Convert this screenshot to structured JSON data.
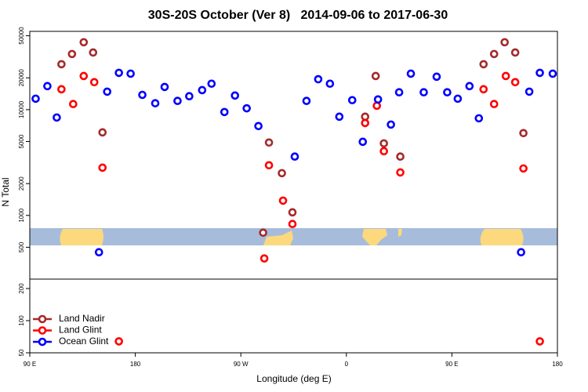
{
  "chart_data": [
    {
      "type": "scatter",
      "title": "30S-20S October (Ver 8)   2014-09-06 to 2017-06-30",
      "ylabel": "N Total",
      "xlim": [
        90,
        540
      ],
      "ylim": [
        250,
        55000
      ],
      "log_y": true,
      "yticks": [
        500,
        1000,
        2000,
        5000,
        10000,
        20000,
        50000
      ],
      "series": [
        {
          "name": "Land Nadir",
          "color": "#a52a2a",
          "x": [
            117,
            126,
            136,
            144,
            152,
            289,
            294,
            305,
            314,
            376,
            385,
            392,
            406,
            477,
            486,
            495,
            504,
            511
          ],
          "values": [
            26900,
            33600,
            43400,
            34700,
            6100,
            687,
            4890,
            2510,
            1070,
            8580,
            20800,
            4800,
            3600,
            26900,
            33600,
            43400,
            34700,
            6000
          ]
        },
        {
          "name": "Land Glint",
          "color": "#ff0000",
          "x": [
            117,
            127,
            136,
            145,
            152,
            290,
            294,
            306,
            314,
            376,
            386,
            392,
            406,
            477,
            486,
            496,
            504,
            511
          ],
          "values": [
            15600,
            11300,
            20800,
            18200,
            2830,
            392,
            2980,
            1380,
            830,
            7480,
            10900,
            4050,
            2550,
            15600,
            11300,
            20800,
            18200,
            2780
          ]
        },
        {
          "name": "Ocean Glint",
          "color": "#0000ff",
          "x": [
            95,
            105,
            113,
            149,
            156,
            166,
            176,
            186,
            197,
            205,
            216,
            226,
            237,
            245,
            256,
            265,
            275,
            285,
            316,
            326,
            336,
            346,
            354,
            365,
            374,
            387,
            398,
            405,
            415,
            426,
            437,
            446,
            455,
            465,
            473,
            509,
            516,
            525,
            536
          ],
          "values": [
            12700,
            16700,
            8430,
            449,
            14800,
            22300,
            21900,
            13800,
            11500,
            16400,
            12100,
            13400,
            15300,
            17600,
            9500,
            13600,
            10300,
            7000,
            3600,
            12100,
            19400,
            17600,
            8580,
            12300,
            4970,
            12500,
            7230,
            14600,
            21900,
            14600,
            20500,
            14600,
            12700,
            16700,
            8290,
            449,
            14800,
            22300,
            21900
          ]
        }
      ]
    },
    {
      "type": "scatter",
      "xlabel": "Longitude (deg E)",
      "xlim": [
        90,
        540
      ],
      "ylim": [
        50,
        245
      ],
      "log_y": true,
      "xticks": [
        {
          "value": 90,
          "label": "90 E"
        },
        180,
        {
          "value": 270,
          "label": "90 W"
        },
        {
          "value": 360,
          "label": "0"
        },
        {
          "value": 450,
          "label": "90 E"
        },
        {
          "value": 540,
          "label": "180"
        }
      ],
      "yticks": [
        50,
        100,
        200
      ],
      "legend": "lower left",
      "series": [
        {
          "color": "#ff0000",
          "x": [
            166,
            525
          ],
          "values": [
            64,
            64
          ]
        }
      ]
    }
  ]
}
